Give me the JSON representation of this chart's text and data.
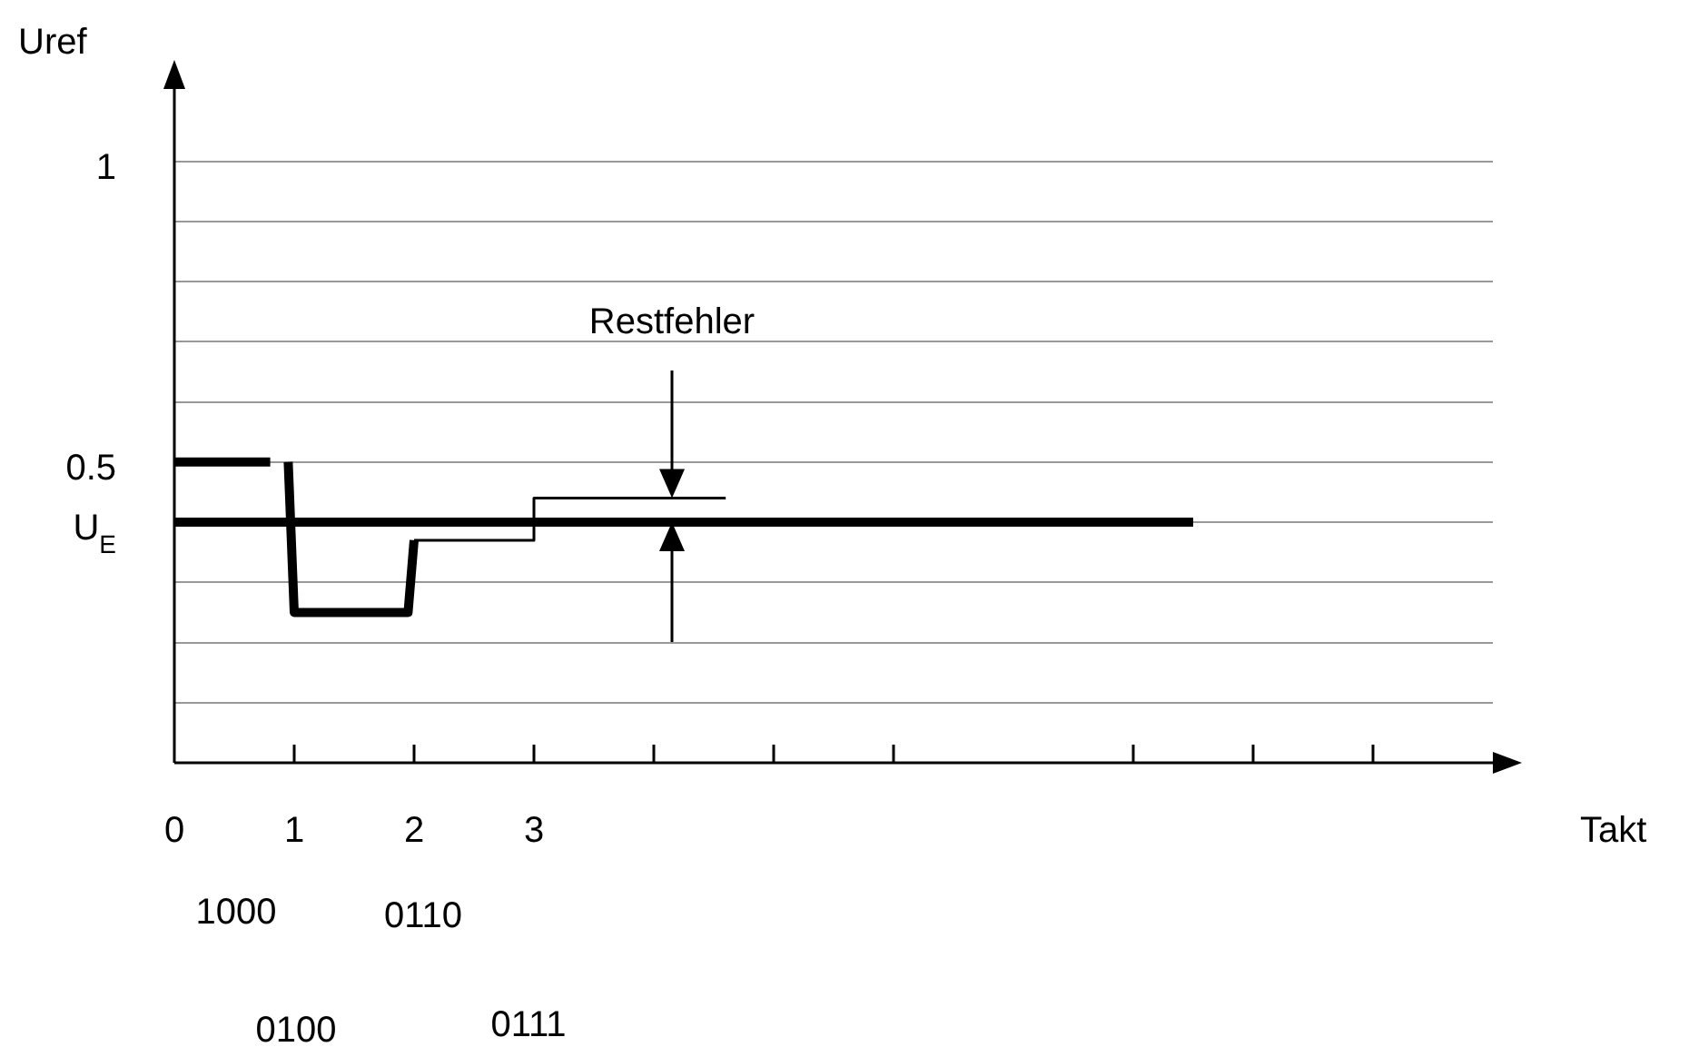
{
  "chart_data": {
    "type": "line",
    "ylabel": "Uref",
    "xlabel": "Takt",
    "xlim": [
      0,
      11
    ],
    "ylim": [
      0,
      1.12
    ],
    "xticks": [
      0,
      1,
      2,
      3,
      {
        "value": 4,
        "label": null
      },
      {
        "value": 5,
        "label": null
      },
      {
        "value": 6,
        "label": null
      },
      {
        "value": 8,
        "label": null
      },
      {
        "value": 9,
        "label": null
      },
      {
        "value": 10,
        "label": null
      }
    ],
    "yticks": [
      {
        "value": 0.1,
        "label": null
      },
      {
        "value": 0.2,
        "label": null
      },
      {
        "value": 0.3,
        "label": null
      },
      {
        "value": 0.4,
        "label": "U$_{E}$"
      },
      0.5,
      {
        "value": 0.6,
        "label": null
      },
      {
        "value": 0.7,
        "label": null
      },
      {
        "value": 0.8,
        "label": null
      },
      {
        "value": 0.9,
        "label": null
      },
      1
    ],
    "grid": "y",
    "marker": "none",
    "line_style": "solid",
    "series": [
      {
        "color": "#000000",
        "x": [
          0,
          0.8,
          0.85,
          0.95,
          1,
          1.95,
          2
        ],
        "values": [
          0.5,
          0.5,
          null,
          0.5,
          0.25,
          0.25,
          0.37
        ]
      },
      {
        "color": "#000000",
        "x": [
          2,
          3,
          3,
          4.6
        ],
        "values": [
          0.37,
          0.37,
          0.44,
          0.44
        ]
      },
      {
        "color": "#000000",
        "x": [
          0,
          8.5
        ],
        "values": [
          0.4,
          0.4
        ]
      }
    ],
    "annotations": [
      "Restfehler",
      "1000",
      "0100",
      "0110",
      "0111"
    ]
  }
}
